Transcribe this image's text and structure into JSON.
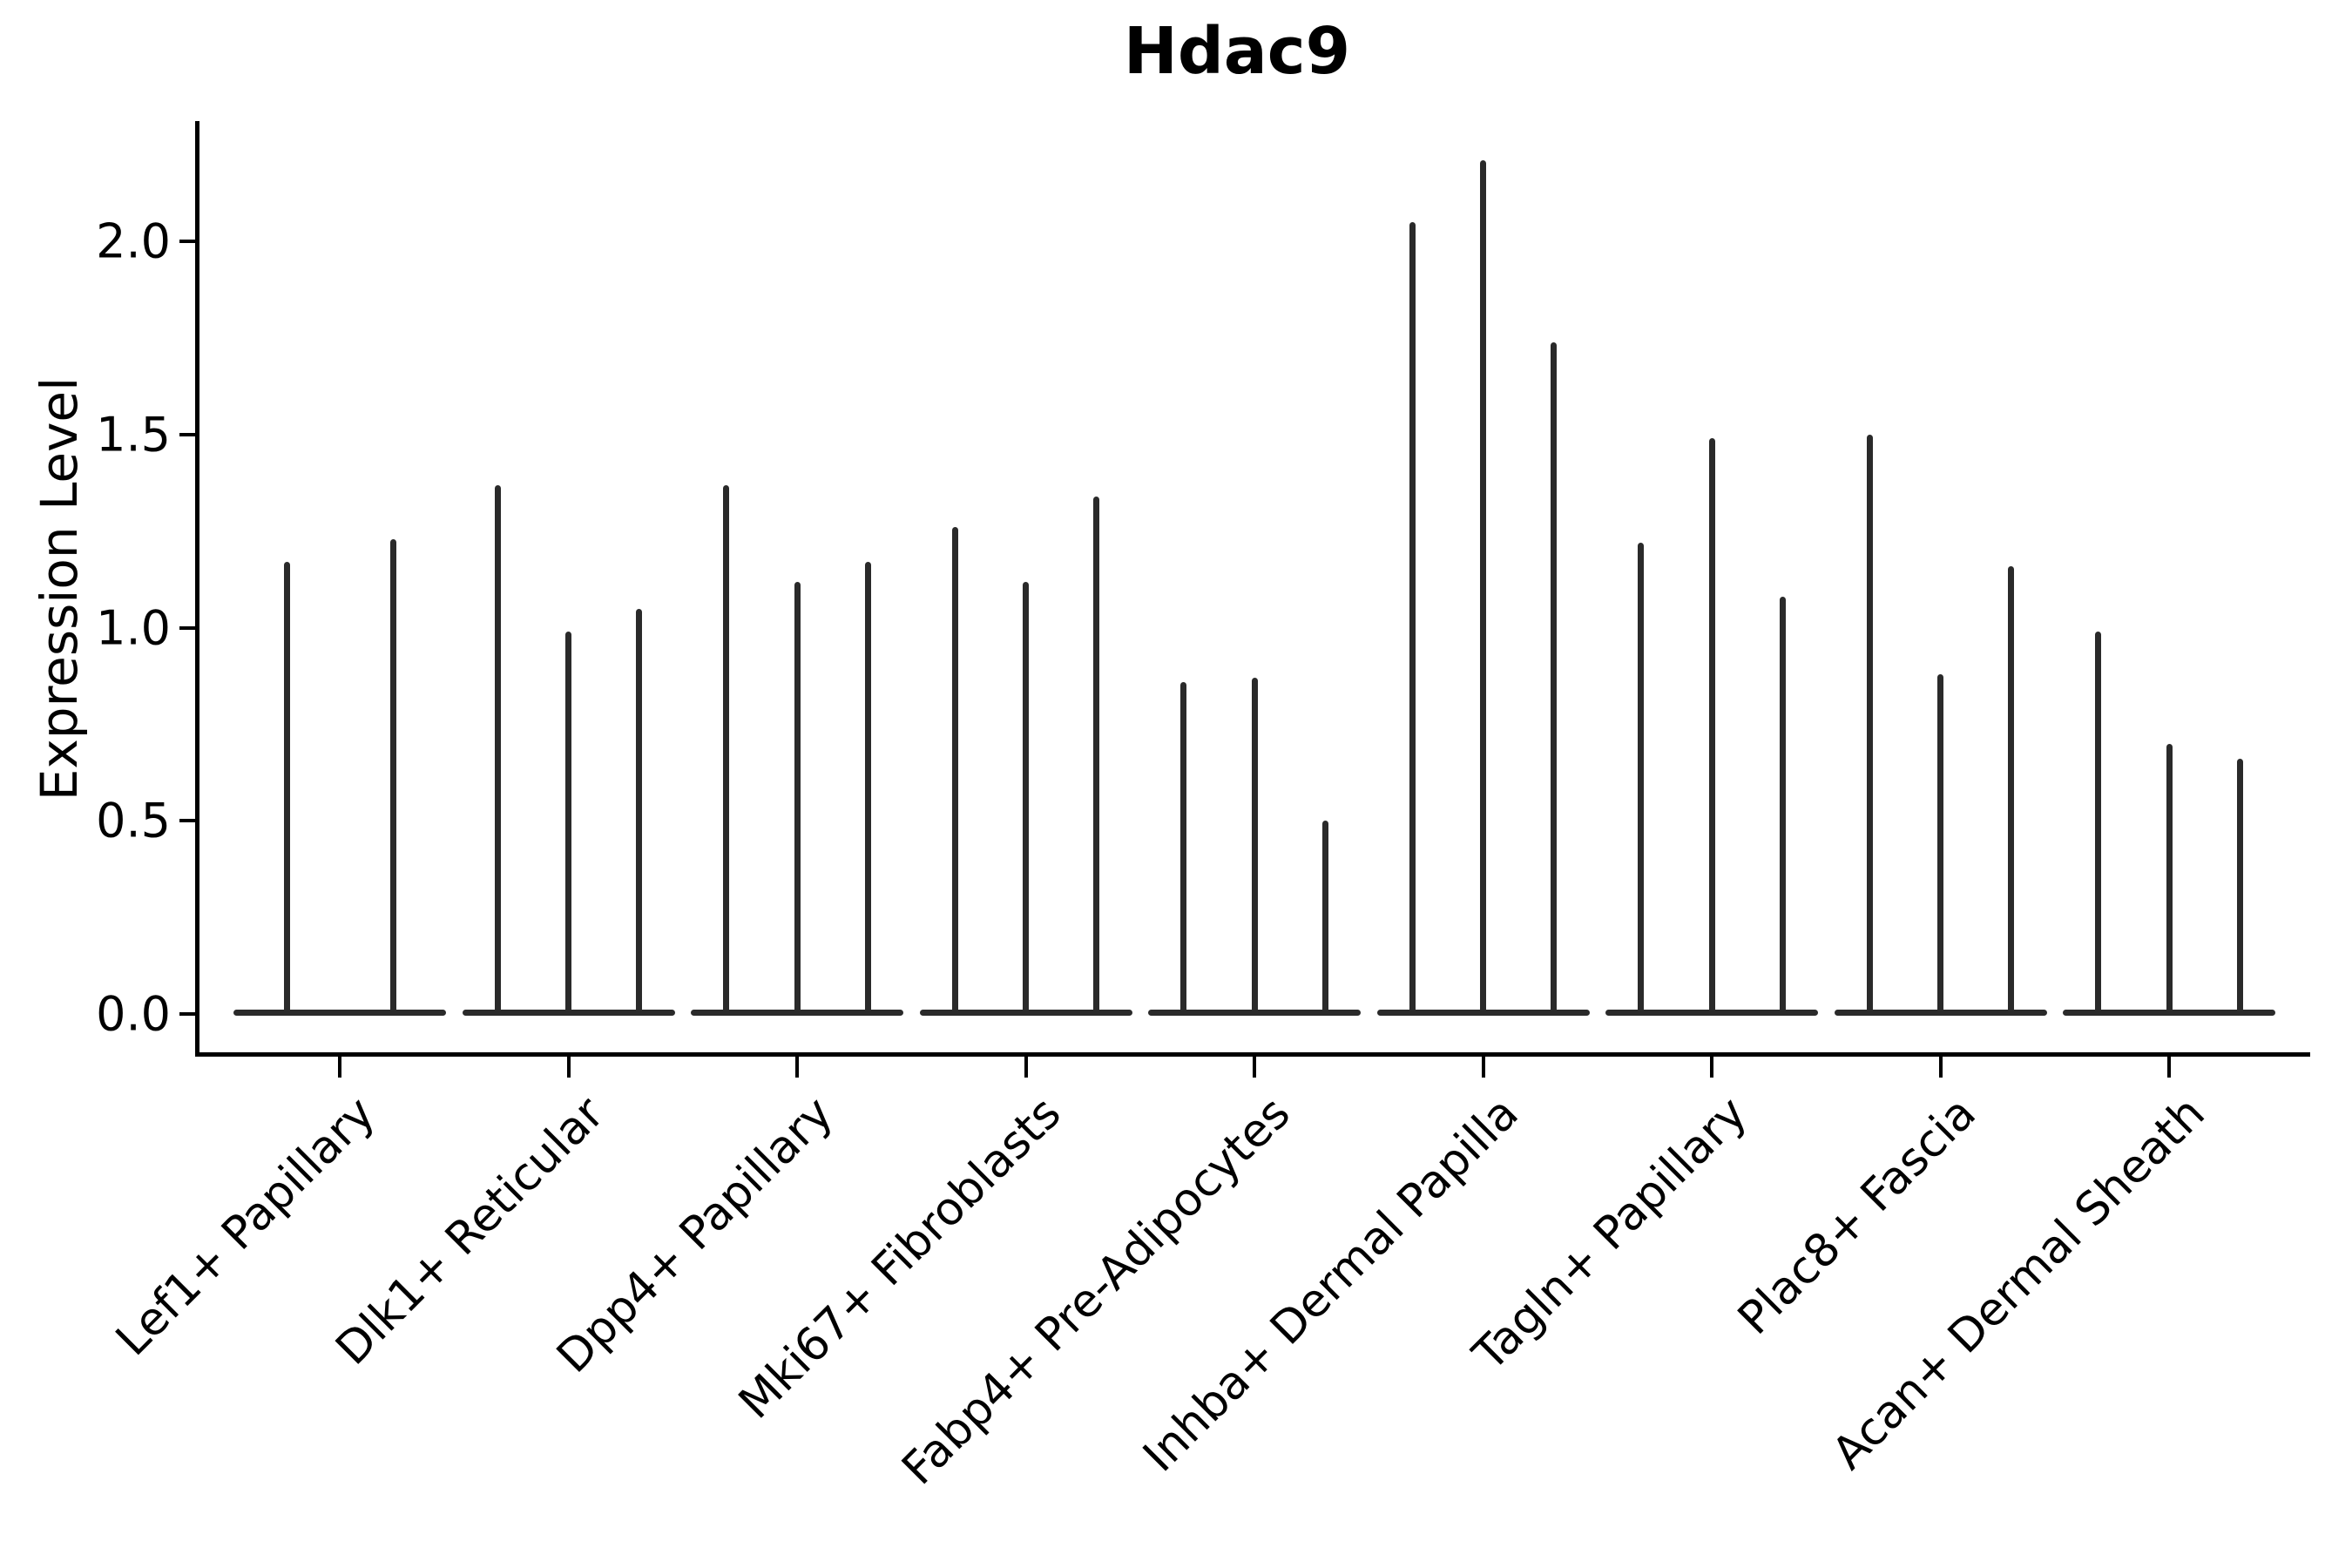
{
  "chart_data": {
    "type": "violin",
    "title": "Hdac9",
    "ylabel": "Expression Level",
    "xlabel": "",
    "ylim": [
      0,
      2.33
    ],
    "grid": false,
    "legend": "none",
    "style_note": "Each violin is an extremely narrow spike: wide flat density base at expression 0 with a thin vertical tail rising to the maximum expression value. Dark charcoal fill, no visible points.",
    "yticks": [
      {
        "label": "0.0",
        "value": 0.0
      },
      {
        "label": "0.5",
        "value": 0.5
      },
      {
        "label": "1.0",
        "value": 1.0
      },
      {
        "label": "1.5",
        "value": 1.5
      },
      {
        "label": "2.0",
        "value": 2.0
      }
    ],
    "groups": [
      {
        "category": "Lef1+ Papillary",
        "violin_maxima": [
          1.17,
          1.23
        ]
      },
      {
        "category": "Dlk1+ Reticular",
        "violin_maxima": [
          1.37,
          0.99,
          1.05
        ]
      },
      {
        "category": "Dpp4+ Papillary",
        "violin_maxima": [
          1.37,
          1.12,
          1.17
        ]
      },
      {
        "category": "Mki67+ Fibroblasts",
        "violin_maxima": [
          1.26,
          1.12,
          1.34
        ]
      },
      {
        "category": "Fabp4+ Pre-Adipocytes",
        "violin_maxima": [
          0.86,
          0.87,
          0.5
        ]
      },
      {
        "category": "Inhba+ Dermal Papilla",
        "violin_maxima": [
          2.05,
          2.21,
          1.74
        ]
      },
      {
        "category": "Tagln+ Papillary",
        "violin_maxima": [
          1.22,
          1.49,
          1.08
        ]
      },
      {
        "category": "Plac8+ Fascia",
        "violin_maxima": [
          1.5,
          0.88,
          1.16
        ]
      },
      {
        "category": "Acan+ Dermal Sheath",
        "violin_maxima": [
          0.99,
          0.7,
          0.66
        ]
      }
    ],
    "colors": {
      "violin": "#2a2a2a",
      "axis": "#000000",
      "text": "#000000",
      "background": "#ffffff"
    }
  }
}
